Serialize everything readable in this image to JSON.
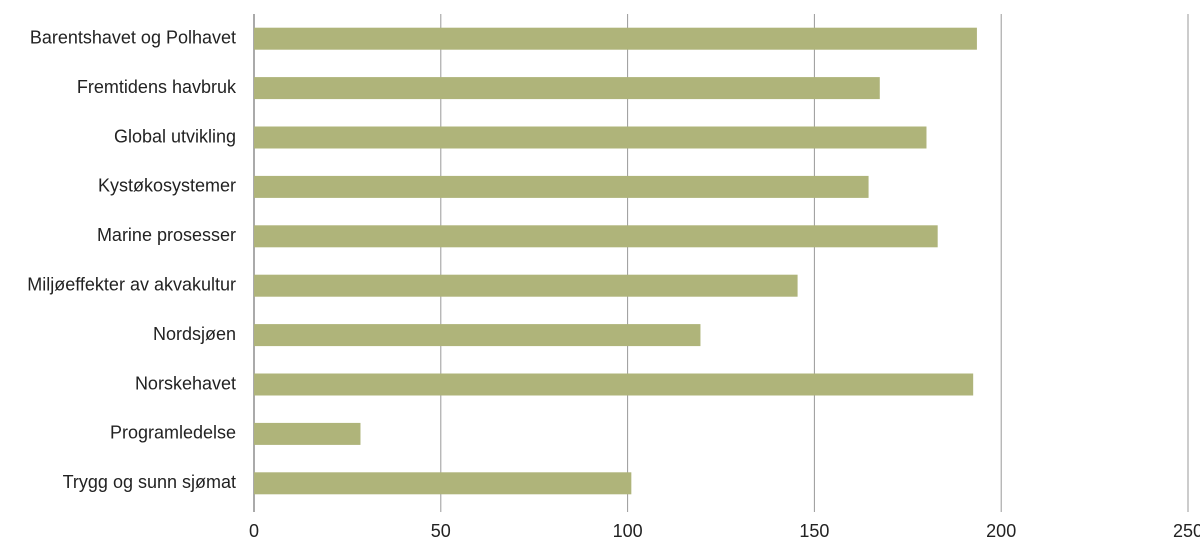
{
  "chart_data": {
    "type": "hbar",
    "categories": [
      "Barentshavet og Polhavet",
      "Fremtidens havbruk",
      "Global utvikling",
      "Kystøkosystemer",
      "Marine prosesser",
      "Miljøeffekter av akvakultur",
      "Nordsjøen",
      "Norskehavet",
      "Programledelse",
      "Trygg og sunn sjømat"
    ],
    "values": [
      193.5,
      167.5,
      180,
      164.5,
      183,
      145.5,
      119.5,
      192.5,
      28.5,
      101
    ],
    "color": "#afb47a",
    "xlim": [
      0,
      250
    ],
    "xticks": [
      0,
      50,
      100,
      150,
      200,
      250
    ],
    "grid": true
  }
}
